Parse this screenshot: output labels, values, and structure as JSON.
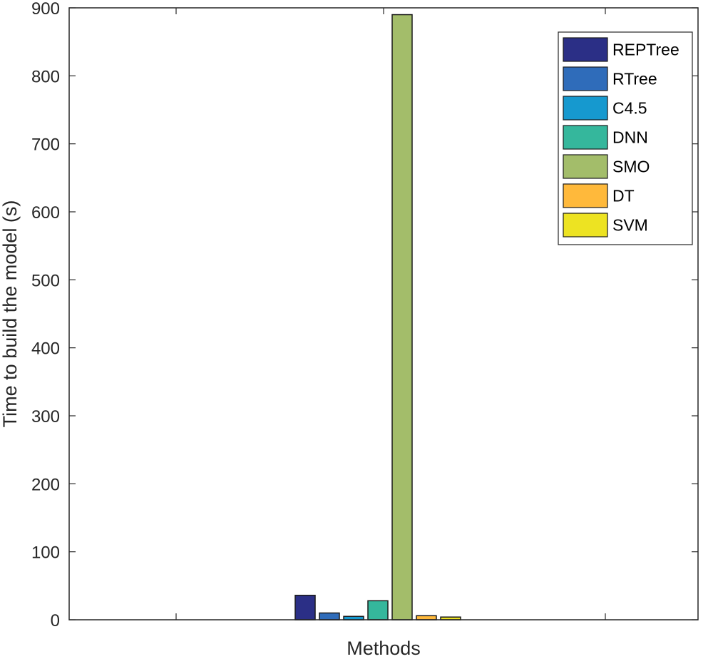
{
  "chart_data": {
    "type": "bar",
    "title": "",
    "xlabel": "Methods",
    "ylabel": "Time to build the model (s)",
    "ylim": [
      0,
      900
    ],
    "yticks": [
      0,
      100,
      200,
      300,
      400,
      500,
      600,
      700,
      800,
      900
    ],
    "grid": false,
    "legend_position": "top-right",
    "series": [
      {
        "name": "REPTree",
        "value": 36,
        "color": "#2b2f86"
      },
      {
        "name": "RTree",
        "value": 10,
        "color": "#2f6cba"
      },
      {
        "name": "C4.5",
        "value": 5,
        "color": "#1699cf"
      },
      {
        "name": "DNN",
        "value": 28,
        "color": "#35b79c"
      },
      {
        "name": "SMO",
        "value": 890,
        "color": "#a3bd6a"
      },
      {
        "name": "DT",
        "value": 6,
        "color": "#ffb93b"
      },
      {
        "name": "SVM",
        "value": 4,
        "color": "#ede322"
      }
    ]
  }
}
